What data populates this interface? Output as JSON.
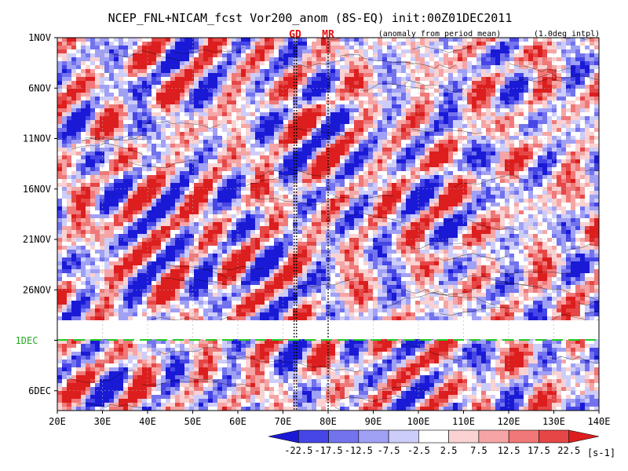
{
  "header": {
    "title": "NCEP_FNL+NICAM_fcst Vor200_anom (8S-EQ) init:00Z01DEC2011",
    "note_anomaly": "(anomaly from period mean)",
    "note_interp": "(1.0deg intpl)"
  },
  "markers": {
    "gd": "GD",
    "mr": "MR"
  },
  "init_line_label": "1DEC",
  "colorbar": {
    "labels": [
      "-22.5",
      "-17.5",
      "-12.5",
      "-7.5",
      "-2.5",
      "2.5",
      "7.5",
      "12.5",
      "17.5",
      "22.5"
    ],
    "unit": "[s-1]",
    "colors": [
      "#1a1ad6",
      "#4646e6",
      "#7373ee",
      "#a0a0f5",
      "#cdcdfa",
      "#ffffff",
      "#fad2d2",
      "#f5a5a5",
      "#f07878",
      "#e64646",
      "#dc1e1e"
    ]
  },
  "chart_data": {
    "type": "heatmap",
    "title": "NCEP_FNL+NICAM_fcst Vor200_anom (8S-EQ) init:00Z01DEC2011",
    "xlabel": "",
    "ylabel": "",
    "x_ticks": [
      "20E",
      "30E",
      "40E",
      "50E",
      "60E",
      "70E",
      "80E",
      "90E",
      "100E",
      "110E",
      "120E",
      "130E",
      "140E"
    ],
    "xlim": [
      20,
      140
    ],
    "y_ticks": [
      "1NOV",
      "6NOV",
      "11NOV",
      "16NOV",
      "21NOV",
      "26NOV",
      "1DEC",
      "6DEC"
    ],
    "ylim_days_from_1NOV": [
      0,
      38
    ],
    "contour_levels": [
      -22.5,
      -17.5,
      -12.5,
      -7.5,
      -2.5,
      2.5,
      7.5,
      12.5,
      17.5,
      22.5
    ],
    "unit": "[s-1]",
    "missing_data_band": [
      "28NOV",
      "30NOV"
    ],
    "forecast_start": "1DEC",
    "reference_lines_lon": [
      {
        "label": "GD",
        "lon": 73
      },
      {
        "label": "MR",
        "lon": 80
      }
    ],
    "grid": true
  }
}
